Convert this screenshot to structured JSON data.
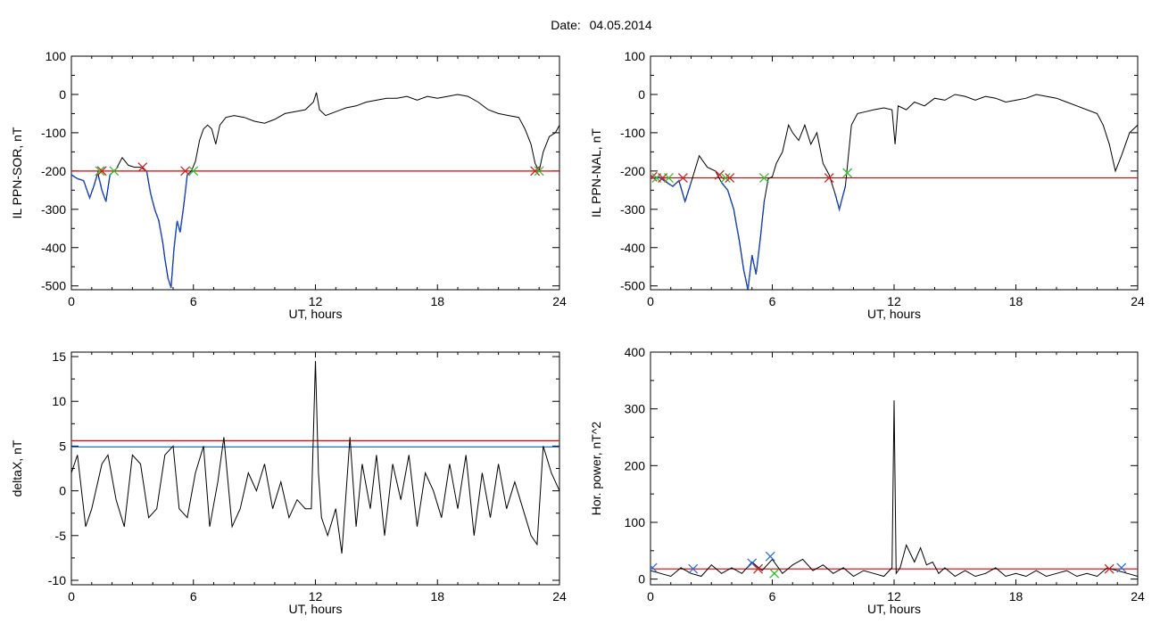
{
  "header": {
    "date_label": "Date:",
    "date_value": "04.05.2014"
  },
  "colors": {
    "threshold_red": "#e00000",
    "threshold_blue": "#1f6fd6",
    "trace": "#000000",
    "highlight": "#1f55d6",
    "marker_red": "#d02020",
    "marker_green": "#30c030",
    "marker_blue": "#2b6fd8"
  },
  "chart_data": [
    {
      "id": "il-ppn-sor",
      "type": "line",
      "xlabel": "UT, hours",
      "ylabel": "IL PPN-SOR, nT",
      "xlim": [
        0,
        24
      ],
      "ylim": [
        -510,
        100
      ],
      "xticks": [
        0,
        6,
        12,
        18,
        24
      ],
      "yticks": [
        100,
        0,
        -100,
        -200,
        -300,
        -400,
        -500
      ],
      "threshold": {
        "value": -200,
        "color": "#e00000"
      },
      "series": [
        {
          "x": [
            0,
            0.3,
            0.6,
            0.9,
            1.1,
            1.3,
            1.5,
            1.7,
            1.9,
            2.2,
            2.5,
            2.8,
            3.1,
            3.4,
            3.7,
            3.9,
            4.1,
            4.3,
            4.5,
            4.6,
            4.75,
            4.9,
            5.05,
            5.2,
            5.35,
            5.5,
            5.7,
            5.9,
            6.1,
            6.3,
            6.5,
            6.7,
            6.9,
            7.1,
            7.3,
            7.6,
            8,
            8.5,
            9,
            9.5,
            10,
            10.5,
            11,
            11.5,
            11.9,
            12.05,
            12.2,
            12.5,
            13,
            13.5,
            14,
            14.5,
            15,
            15.5,
            16,
            16.5,
            17,
            17.5,
            18,
            18.5,
            19,
            19.5,
            20,
            20.5,
            21,
            21.5,
            22,
            22.3,
            22.6,
            22.8,
            23,
            23.2,
            23.5,
            23.8,
            24
          ],
          "values": [
            -210,
            -220,
            -225,
            -270,
            -240,
            -205,
            -250,
            -280,
            -210,
            -195,
            -165,
            -185,
            -190,
            -190,
            -200,
            -260,
            -300,
            -330,
            -390,
            -430,
            -480,
            -505,
            -400,
            -330,
            -360,
            -300,
            -210,
            -200,
            -175,
            -120,
            -90,
            -80,
            -90,
            -130,
            -80,
            -60,
            -55,
            -60,
            -70,
            -75,
            -65,
            -50,
            -45,
            -40,
            -20,
            5,
            -40,
            -55,
            -45,
            -35,
            -30,
            -20,
            -15,
            -10,
            -10,
            -5,
            -15,
            -5,
            -10,
            -5,
            0,
            -5,
            -20,
            -40,
            -50,
            -55,
            -60,
            -90,
            -130,
            -180,
            -200,
            -150,
            -110,
            -100,
            -80
          ]
        }
      ],
      "highlight": {
        "segments": [
          [
            0,
            2.2
          ],
          [
            3.7,
            6.0
          ]
        ],
        "color": "#1f55d6"
      },
      "markers": [
        {
          "x": 1.4,
          "y": -200,
          "color": "#30c030"
        },
        {
          "x": 1.5,
          "y": -200,
          "color": "#d02020"
        },
        {
          "x": 2.1,
          "y": -200,
          "color": "#30c030"
        },
        {
          "x": 3.5,
          "y": -190,
          "color": "#d02020"
        },
        {
          "x": 5.6,
          "y": -200,
          "color": "#d02020"
        },
        {
          "x": 6.0,
          "y": -200,
          "color": "#30c030"
        },
        {
          "x": 22.8,
          "y": -200,
          "color": "#d02020"
        },
        {
          "x": 23.0,
          "y": -200,
          "color": "#30c030"
        }
      ]
    },
    {
      "id": "il-ppn-nal",
      "type": "line",
      "xlabel": "UT, hours",
      "ylabel": "IL PPN-NAL, nT",
      "xlim": [
        0,
        24
      ],
      "ylim": [
        -510,
        100
      ],
      "xticks": [
        0,
        6,
        12,
        18,
        24
      ],
      "yticks": [
        100,
        0,
        -100,
        -200,
        -300,
        -400,
        -500
      ],
      "threshold": {
        "value": -218,
        "color": "#e00000"
      },
      "series": [
        {
          "x": [
            0,
            0.4,
            0.8,
            1.1,
            1.4,
            1.7,
            2,
            2.4,
            2.8,
            3.2,
            3.5,
            3.8,
            4.1,
            4.4,
            4.6,
            4.8,
            5.0,
            5.2,
            5.4,
            5.6,
            5.8,
            6.0,
            6.2,
            6.5,
            6.8,
            7.0,
            7.3,
            7.6,
            7.9,
            8.2,
            8.5,
            8.8,
            9.1,
            9.3,
            9.6,
            9.9,
            10.2,
            10.6,
            11,
            11.5,
            11.9,
            12.05,
            12.2,
            12.6,
            13,
            13.5,
            14,
            14.5,
            15,
            15.5,
            16,
            16.5,
            17,
            17.5,
            18,
            18.5,
            19,
            19.5,
            20,
            20.5,
            21,
            21.5,
            22,
            22.3,
            22.6,
            22.9,
            23.2,
            23.6,
            24
          ],
          "values": [
            -220,
            -215,
            -230,
            -240,
            -225,
            -280,
            -230,
            -160,
            -190,
            -200,
            -230,
            -250,
            -300,
            -390,
            -460,
            -510,
            -420,
            -470,
            -380,
            -280,
            -220,
            -215,
            -180,
            -150,
            -80,
            -100,
            -120,
            -80,
            -130,
            -100,
            -180,
            -210,
            -260,
            -300,
            -240,
            -80,
            -50,
            -45,
            -40,
            -35,
            -40,
            -130,
            -30,
            -40,
            -20,
            -30,
            -10,
            -15,
            0,
            -5,
            -15,
            -5,
            -10,
            -20,
            -15,
            -10,
            0,
            -5,
            -10,
            -20,
            -30,
            -40,
            -50,
            -80,
            -130,
            -200,
            -160,
            -100,
            -80
          ]
        }
      ],
      "highlight": {
        "segments": [
          [
            0,
            2.3
          ],
          [
            3.5,
            5.6
          ],
          [
            9.0,
            9.7
          ]
        ],
        "color": "#1f55d6"
      },
      "markers": [
        {
          "x": 0.1,
          "y": -215,
          "color": "#d02020"
        },
        {
          "x": 0.3,
          "y": -218,
          "color": "#30c030"
        },
        {
          "x": 0.6,
          "y": -218,
          "color": "#d02020"
        },
        {
          "x": 0.9,
          "y": -218,
          "color": "#30c030"
        },
        {
          "x": 1.6,
          "y": -218,
          "color": "#d02020"
        },
        {
          "x": 3.4,
          "y": -210,
          "color": "#d02020"
        },
        {
          "x": 3.7,
          "y": -218,
          "color": "#30c030"
        },
        {
          "x": 3.9,
          "y": -218,
          "color": "#d02020"
        },
        {
          "x": 5.6,
          "y": -218,
          "color": "#30c030"
        },
        {
          "x": 8.8,
          "y": -218,
          "color": "#d02020"
        },
        {
          "x": 9.7,
          "y": -205,
          "color": "#30c030"
        }
      ]
    },
    {
      "id": "deltax",
      "type": "line",
      "xlabel": "UT, hours",
      "ylabel": "deltaX, nT",
      "xlim": [
        0,
        24
      ],
      "ylim": [
        -10.5,
        15.5
      ],
      "xticks": [
        0,
        6,
        12,
        18,
        24
      ],
      "yticks": [
        15,
        10,
        5,
        0,
        -5,
        -10
      ],
      "thresholds": [
        {
          "value": 5.6,
          "color": "#e00000"
        },
        {
          "value": 4.9,
          "color": "#1f6fd6"
        }
      ],
      "series": [
        {
          "x": [
            0,
            0.3,
            0.7,
            1.0,
            1.5,
            1.8,
            2.2,
            2.6,
            3.0,
            3.4,
            3.8,
            4.2,
            4.6,
            5.0,
            5.3,
            5.7,
            6.1,
            6.5,
            6.8,
            7.2,
            7.5,
            7.9,
            8.3,
            8.7,
            9.1,
            9.5,
            9.9,
            10.3,
            10.7,
            11.1,
            11.5,
            11.8,
            12.0,
            12.15,
            12.3,
            12.6,
            13.0,
            13.3,
            13.7,
            14.0,
            14.3,
            14.7,
            15.0,
            15.4,
            15.8,
            16.2,
            16.6,
            17.0,
            17.4,
            17.8,
            18.2,
            18.6,
            19.0,
            19.4,
            19.8,
            20.2,
            20.6,
            21.0,
            21.4,
            21.8,
            22.2,
            22.6,
            22.9,
            23.2,
            23.6,
            24
          ],
          "values": [
            2,
            4,
            -4,
            -2,
            3,
            4,
            -1,
            -4,
            4,
            3,
            -3,
            -2,
            4,
            5,
            -2,
            -3,
            2,
            5,
            -4,
            1,
            6,
            -4,
            -2,
            2,
            0,
            3,
            -2,
            1,
            -3,
            -1,
            -2,
            -2,
            14.5,
            2,
            -3,
            -5,
            -2,
            -7,
            6,
            -4,
            3,
            -2,
            4,
            -5,
            3,
            -1,
            4,
            -4,
            2,
            0,
            -3,
            3,
            -2,
            4,
            -5,
            2,
            -3,
            3,
            -2,
            1,
            -2,
            -5,
            -6,
            5,
            2,
            0
          ]
        }
      ]
    },
    {
      "id": "hor-power",
      "type": "line",
      "xlabel": "UT, hours",
      "ylabel": "Hor. power, nT^2",
      "xlim": [
        0,
        24
      ],
      "ylim": [
        -10,
        400
      ],
      "xticks": [
        0,
        6,
        12,
        18,
        24
      ],
      "yticks": [
        400,
        300,
        200,
        100,
        0
      ],
      "threshold": {
        "value": 18,
        "color": "#e00000"
      },
      "series": [
        {
          "x": [
            0,
            0.5,
            1.0,
            1.5,
            2.0,
            2.5,
            3.0,
            3.5,
            4.0,
            4.5,
            5.0,
            5.5,
            6.0,
            6.5,
            7.0,
            7.5,
            8.0,
            8.5,
            9.0,
            9.5,
            10.0,
            10.5,
            11.0,
            11.5,
            11.9,
            12.0,
            12.1,
            12.3,
            12.6,
            13.0,
            13.3,
            13.6,
            13.9,
            14.2,
            14.5,
            15.0,
            15.5,
            16.0,
            16.5,
            17.0,
            17.5,
            18.0,
            18.5,
            19.0,
            19.5,
            20.0,
            20.5,
            21.0,
            21.5,
            22.0,
            22.5,
            23.0,
            23.5,
            24
          ],
          "values": [
            15,
            10,
            5,
            20,
            10,
            5,
            25,
            10,
            20,
            10,
            30,
            15,
            35,
            10,
            25,
            35,
            15,
            25,
            10,
            20,
            5,
            15,
            10,
            5,
            20,
            315,
            10,
            20,
            60,
            30,
            55,
            25,
            30,
            10,
            20,
            5,
            15,
            5,
            10,
            20,
            5,
            10,
            5,
            15,
            5,
            10,
            15,
            5,
            10,
            5,
            20,
            15,
            10,
            5
          ]
        }
      ],
      "markers": [
        {
          "x": 0.1,
          "y": 20,
          "color": "#2b6fd8"
        },
        {
          "x": 2.1,
          "y": 18,
          "color": "#2b6fd8"
        },
        {
          "x": 5.0,
          "y": 28,
          "color": "#2b6fd8"
        },
        {
          "x": 5.3,
          "y": 18,
          "color": "#d02020"
        },
        {
          "x": 5.9,
          "y": 40,
          "color": "#2b6fd8"
        },
        {
          "x": 6.1,
          "y": 10,
          "color": "#30c030"
        },
        {
          "x": 22.6,
          "y": 18,
          "color": "#d02020"
        },
        {
          "x": 23.2,
          "y": 20,
          "color": "#2b6fd8"
        }
      ]
    }
  ]
}
